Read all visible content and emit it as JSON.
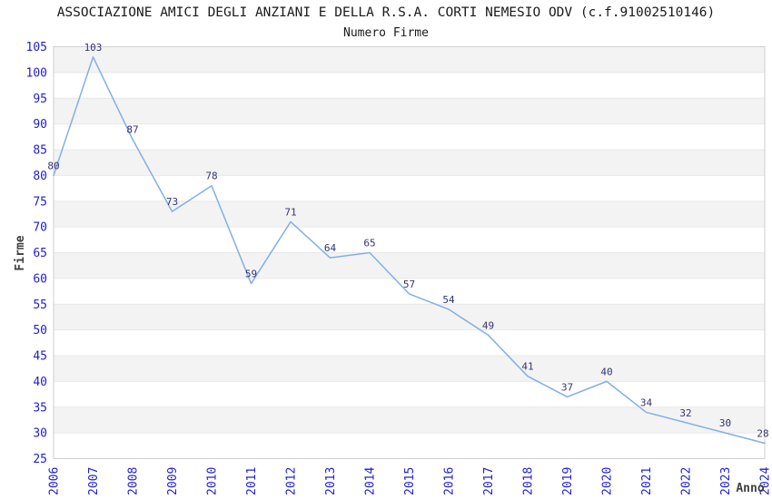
{
  "chart_data": {
    "type": "line",
    "title": "ASSOCIAZIONE AMICI DEGLI ANZIANI E DELLA R.S.A. CORTI NEMESIO ODV (c.f.91002510146)",
    "subtitle": "Numero Firme",
    "xlabel": "Anno",
    "ylabel": "Firme",
    "categories": [
      2006,
      2007,
      2008,
      2009,
      2010,
      2011,
      2012,
      2013,
      2014,
      2015,
      2016,
      2017,
      2018,
      2019,
      2020,
      2021,
      2022,
      2023,
      2024
    ],
    "values": [
      80,
      103,
      87,
      73,
      78,
      59,
      71,
      64,
      65,
      57,
      54,
      49,
      41,
      37,
      40,
      34,
      32,
      30,
      28
    ],
    "ylim": [
      25,
      105
    ],
    "ytick_step": 5,
    "grid": "horizontal-bands",
    "legend": "none",
    "colors": {
      "line": "#82afe6",
      "tick_labels": "#2222cc",
      "data_labels": "#333377",
      "band": "#f3f3f3",
      "gridline": "#e8e8e8",
      "border": "#cfcfcf",
      "title": "#1a1a1a",
      "axis_titles": "#404040",
      "background": "#ffffff"
    }
  }
}
